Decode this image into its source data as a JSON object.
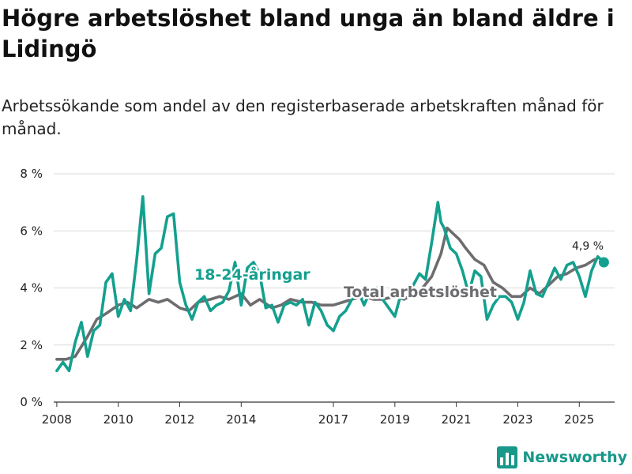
{
  "header": {
    "title": "Högre arbetslöshet bland unga än bland äldre i Lidingö",
    "subtitle": "Arbetssökande som andel av den registerbaserade arbetskraften månad för månad."
  },
  "branding": {
    "name": "Newsworthy",
    "icon": "bar-chart-logo-icon",
    "color": "#17988a"
  },
  "chart_data": {
    "type": "line",
    "title": "Högre arbetslöshet bland unga än bland äldre i Lidingö",
    "xlabel": "",
    "ylabel": "",
    "xlim": [
      2007.9,
      2026.15
    ],
    "ylim": [
      0,
      8
    ],
    "yticks": [
      0,
      2,
      4,
      6,
      8
    ],
    "ytick_labels": [
      "0 %",
      "2 %",
      "4 %",
      "6 %",
      "8 %"
    ],
    "xticks": [
      2008,
      2010,
      2012,
      2014,
      2017,
      2019,
      2021,
      2023,
      2025
    ],
    "xtick_labels": [
      "2008",
      "2010",
      "2012",
      "2014",
      "2017",
      "2019",
      "2021",
      "2023",
      "2025"
    ],
    "grid": true,
    "last_value_label": "4,9 %",
    "series": [
      {
        "name": "Total arbetslöshet",
        "label": "Total arbetslöshet",
        "color": "#6d6d70",
        "x": [
          2008.0,
          2008.3,
          2008.6,
          2009.0,
          2009.3,
          2009.6,
          2010.0,
          2010.3,
          2010.6,
          2011.0,
          2011.3,
          2011.6,
          2012.0,
          2012.3,
          2012.6,
          2013.0,
          2013.3,
          2013.6,
          2014.0,
          2014.3,
          2014.6,
          2015.0,
          2015.3,
          2015.6,
          2016.0,
          2016.3,
          2016.6,
          2017.0,
          2017.3,
          2017.6,
          2018.0,
          2018.3,
          2018.6,
          2019.0,
          2019.3,
          2019.6,
          2019.9,
          2020.2,
          2020.5,
          2020.7,
          2020.9,
          2021.1,
          2021.3,
          2021.6,
          2021.9,
          2022.2,
          2022.5,
          2022.8,
          2023.1,
          2023.4,
          2023.7,
          2024.0,
          2024.3,
          2024.6,
          2024.9,
          2025.2,
          2025.5
        ],
        "values": [
          1.5,
          1.5,
          1.6,
          2.3,
          2.9,
          3.1,
          3.4,
          3.5,
          3.3,
          3.6,
          3.5,
          3.6,
          3.3,
          3.2,
          3.5,
          3.6,
          3.7,
          3.6,
          3.8,
          3.4,
          3.6,
          3.3,
          3.4,
          3.6,
          3.5,
          3.5,
          3.4,
          3.4,
          3.5,
          3.6,
          3.7,
          3.6,
          3.6,
          3.7,
          3.6,
          3.8,
          4.0,
          4.4,
          5.2,
          6.1,
          5.9,
          5.7,
          5.4,
          5.0,
          4.8,
          4.2,
          4.0,
          3.7,
          3.7,
          4.0,
          3.8,
          4.1,
          4.4,
          4.5,
          4.7,
          4.8,
          5.0
        ]
      },
      {
        "name": "18-24-åringar",
        "label": "18-24-åringar",
        "color": "#14a08e",
        "x": [
          2008.0,
          2008.2,
          2008.4,
          2008.6,
          2008.8,
          2009.0,
          2009.2,
          2009.4,
          2009.6,
          2009.8,
          2010.0,
          2010.2,
          2010.4,
          2010.6,
          2010.8,
          2011.0,
          2011.2,
          2011.4,
          2011.6,
          2011.8,
          2012.0,
          2012.2,
          2012.4,
          2012.6,
          2012.8,
          2013.0,
          2013.2,
          2013.4,
          2013.6,
          2013.8,
          2014.0,
          2014.2,
          2014.4,
          2014.6,
          2014.8,
          2015.0,
          2015.2,
          2015.4,
          2015.6,
          2015.8,
          2016.0,
          2016.2,
          2016.4,
          2016.6,
          2016.8,
          2017.0,
          2017.2,
          2017.4,
          2017.6,
          2017.8,
          2018.0,
          2018.2,
          2018.4,
          2018.6,
          2018.8,
          2019.0,
          2019.2,
          2019.4,
          2019.6,
          2019.8,
          2020.0,
          2020.2,
          2020.4,
          2020.5,
          2020.6,
          2020.8,
          2021.0,
          2021.2,
          2021.4,
          2021.6,
          2021.8,
          2022.0,
          2022.2,
          2022.4,
          2022.6,
          2022.8,
          2023.0,
          2023.2,
          2023.4,
          2023.6,
          2023.8,
          2024.0,
          2024.2,
          2024.4,
          2024.6,
          2024.8,
          2025.0,
          2025.2,
          2025.4,
          2025.6,
          2025.8
        ],
        "values": [
          1.1,
          1.4,
          1.1,
          2.1,
          2.8,
          1.6,
          2.5,
          2.7,
          4.2,
          4.5,
          3.0,
          3.6,
          3.2,
          5.0,
          7.2,
          3.8,
          5.2,
          5.4,
          6.5,
          6.6,
          4.2,
          3.4,
          2.9,
          3.5,
          3.7,
          3.2,
          3.4,
          3.5,
          3.9,
          4.9,
          3.4,
          4.7,
          4.9,
          4.5,
          3.3,
          3.4,
          2.8,
          3.4,
          3.5,
          3.4,
          3.6,
          2.7,
          3.5,
          3.2,
          2.7,
          2.5,
          3.0,
          3.2,
          3.6,
          3.9,
          3.4,
          3.9,
          4.0,
          3.6,
          3.3,
          3.0,
          3.8,
          4.0,
          4.1,
          4.5,
          4.3,
          5.6,
          7.0,
          6.3,
          6.1,
          5.4,
          5.2,
          4.6,
          3.8,
          4.6,
          4.4,
          2.9,
          3.4,
          3.7,
          3.7,
          3.5,
          2.9,
          3.5,
          4.6,
          3.8,
          3.7,
          4.2,
          4.7,
          4.3,
          4.8,
          4.9,
          4.4,
          3.7,
          4.6,
          5.1,
          4.9
        ]
      }
    ]
  }
}
